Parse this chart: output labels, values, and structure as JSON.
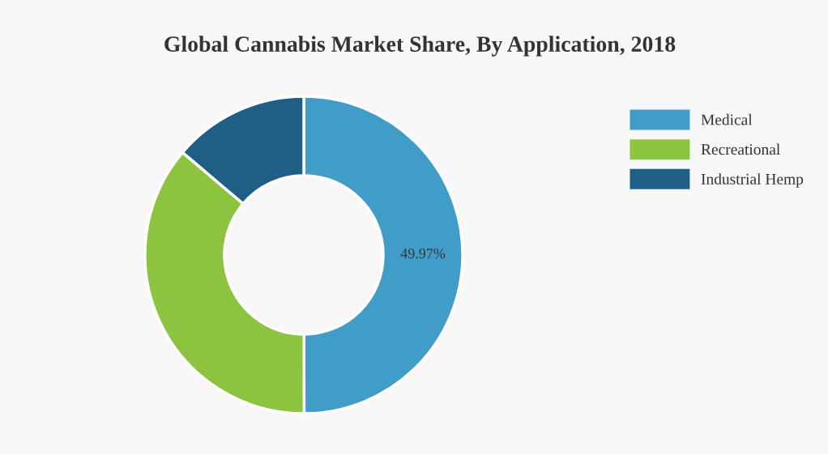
{
  "chart_data": {
    "type": "donut",
    "title": "Global Cannabis Market Share, By Application, 2018",
    "categories": [
      "Medical",
      "Recreational",
      "Industrial Hemp"
    ],
    "values": [
      49.97,
      36.2,
      13.83
    ],
    "colors": [
      "#409dc7",
      "#8cc43f",
      "#1f5f85"
    ],
    "value_labels": [
      "49.97%",
      null,
      null
    ],
    "legend": "top right"
  }
}
